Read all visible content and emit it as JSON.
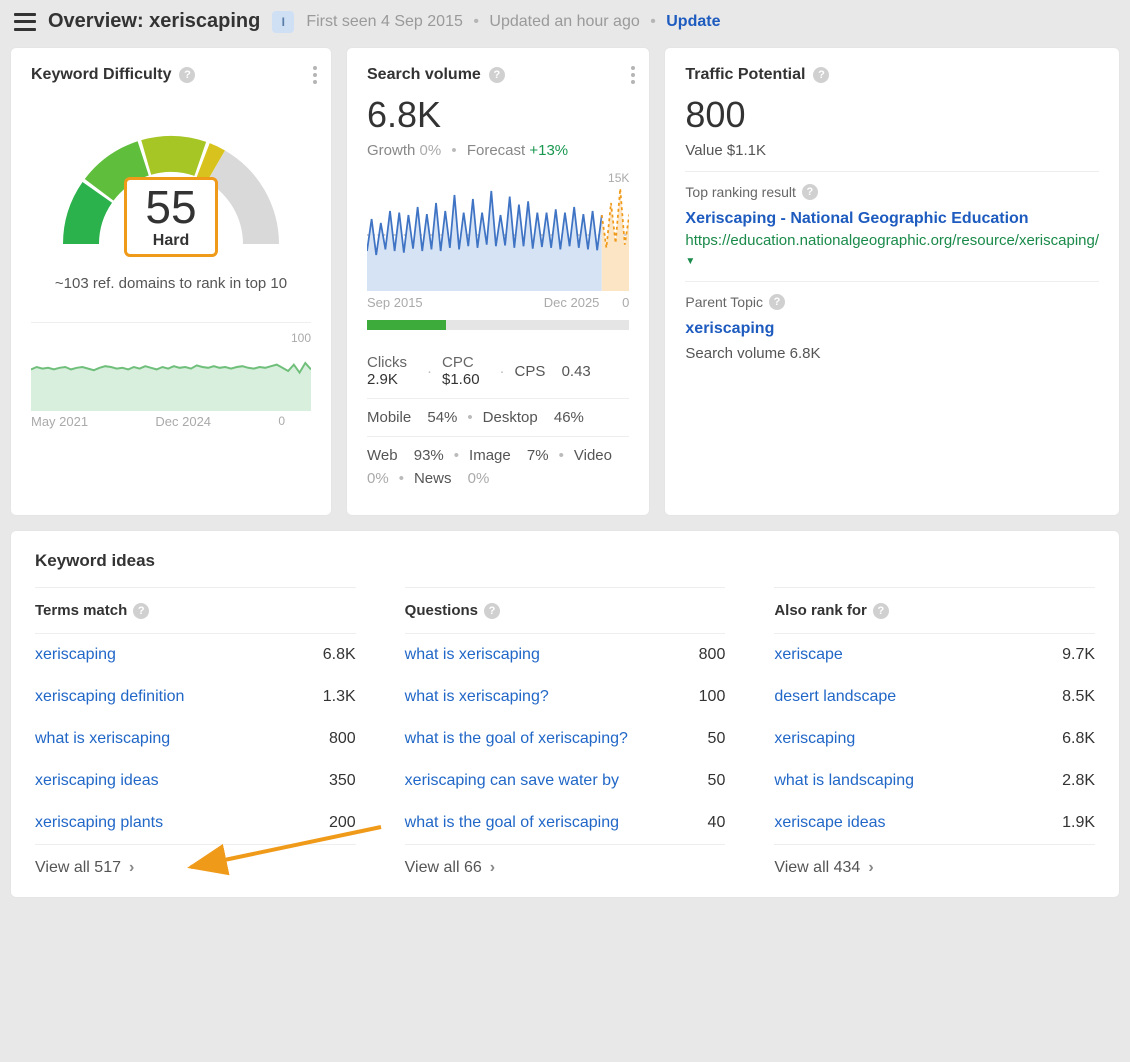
{
  "header": {
    "title": "Overview: xeriscaping",
    "info_badge": "I",
    "first_seen": "First seen 4 Sep 2015",
    "updated": "Updated an hour ago",
    "update_action": "Update"
  },
  "kd": {
    "title": "Keyword Difficulty",
    "score": "55",
    "label": "Hard",
    "subtext": "~103 ref. domains to rank in top 10",
    "gauge": {
      "segments": [
        {
          "start": 180,
          "end": 215,
          "color": "#2bb24c"
        },
        {
          "start": 217,
          "end": 252,
          "color": "#5fbf3d"
        },
        {
          "start": 254,
          "end": 289,
          "color": "#a6c626"
        },
        {
          "start": 291,
          "end": 300,
          "color": "#d8c31e"
        },
        {
          "start": 300,
          "end": 360,
          "color": "#d9d9d9"
        }
      ],
      "inner_radius": 72,
      "outer_radius": 108
    },
    "mini": {
      "scale_top": "100",
      "scale_bot": "0",
      "date_start": "May 2021",
      "date_end": "Dec 2024",
      "stroke": "#6fbf7a",
      "fill": "#d7efdc",
      "points": [
        52,
        55,
        53,
        54,
        52,
        54,
        55,
        52,
        54,
        55,
        53,
        51,
        54,
        56,
        55,
        53,
        54,
        52,
        55,
        53,
        56,
        54,
        52,
        55,
        53,
        56,
        54,
        55,
        53,
        57,
        55,
        54,
        56,
        54,
        55,
        53,
        55,
        56,
        54,
        53,
        55,
        54,
        56,
        58,
        54,
        50,
        58,
        48,
        60,
        52
      ]
    }
  },
  "sv": {
    "title": "Search volume",
    "value": "6.8K",
    "growth_label": "Growth",
    "growth_val": "0%",
    "forecast_label": "Forecast",
    "forecast_val": "+13%",
    "chart": {
      "scale_top": "15K",
      "scale_bot": "0",
      "date_start": "Sep 2015",
      "date_end": "Dec 2025",
      "stroke": "#3f73c4",
      "fill": "#d6e3f4",
      "forecast_stroke": "#f09a1a",
      "forecast_fill": "#fce5c5",
      "baseline": 7000,
      "ymax": 15000,
      "series": [
        5000,
        9000,
        4500,
        8500,
        5200,
        10000,
        5000,
        9800,
        4800,
        9500,
        5300,
        10500,
        5000,
        9600,
        5200,
        11000,
        5000,
        10000,
        5400,
        12000,
        5200,
        9800,
        5600,
        11500,
        5400,
        9800,
        5800,
        12500,
        5600,
        9500,
        5700,
        11800,
        5400,
        10800,
        5600,
        11200,
        5300,
        9800,
        5500,
        9800,
        5400,
        10200,
        5200,
        9800,
        5600,
        10500,
        5400,
        9600,
        5200,
        10000,
        5100,
        9500
      ],
      "forecast": [
        5400,
        11000,
        6000,
        12800,
        5800,
        9600
      ]
    },
    "progress_pct": 30,
    "clicks_label": "Clicks",
    "clicks_val": "2.9K",
    "cpc_label": "CPC",
    "cpc_val": "$1.60",
    "cps_label": "CPS",
    "cps_val": "0.43",
    "mobile_label": "Mobile",
    "mobile_val": "54%",
    "desktop_label": "Desktop",
    "desktop_val": "46%",
    "web_label": "Web",
    "web_val": "93%",
    "image_label": "Image",
    "image_val": "7%",
    "video_label": "Video",
    "video_val": "0%",
    "news_label": "News",
    "news_val": "0%"
  },
  "tp": {
    "title": "Traffic Potential",
    "value": "800",
    "value_sub": "Value $1.1K",
    "top_label": "Top ranking result",
    "top_title": "Xeriscaping - National Geographic Education",
    "top_url": "https://education.nationalgeographic.org/resource/xeriscaping/",
    "parent_label": "Parent Topic",
    "parent_value": "xeriscaping",
    "parent_sv": "Search volume 6.8K"
  },
  "ideas": {
    "title": "Keyword ideas",
    "cols": [
      {
        "header": "Terms match",
        "rows": [
          {
            "kw": "xeriscaping",
            "val": "6.8K"
          },
          {
            "kw": "xeriscaping definition",
            "val": "1.3K"
          },
          {
            "kw": "what is xeriscaping",
            "val": "800"
          },
          {
            "kw": "xeriscaping ideas",
            "val": "350"
          },
          {
            "kw": "xeriscaping plants",
            "val": "200"
          }
        ],
        "view_all": "View all 517"
      },
      {
        "header": "Questions",
        "rows": [
          {
            "kw": "what is xeriscaping",
            "val": "800"
          },
          {
            "kw": "what is xeriscaping?",
            "val": "100"
          },
          {
            "kw": "what is the goal of xeriscaping?",
            "val": "50"
          },
          {
            "kw": "xeriscaping can save water by",
            "val": "50"
          },
          {
            "kw": "what is the goal of xeriscaping",
            "val": "40"
          }
        ],
        "view_all": "View all 66"
      },
      {
        "header": "Also rank for",
        "rows": [
          {
            "kw": "xeriscape",
            "val": "9.7K"
          },
          {
            "kw": "desert landscape",
            "val": "8.5K"
          },
          {
            "kw": "xeriscaping",
            "val": "6.8K"
          },
          {
            "kw": "what is landscaping",
            "val": "2.8K"
          },
          {
            "kw": "xeriscape ideas",
            "val": "1.9K"
          }
        ],
        "view_all": "View all 434"
      }
    ]
  }
}
